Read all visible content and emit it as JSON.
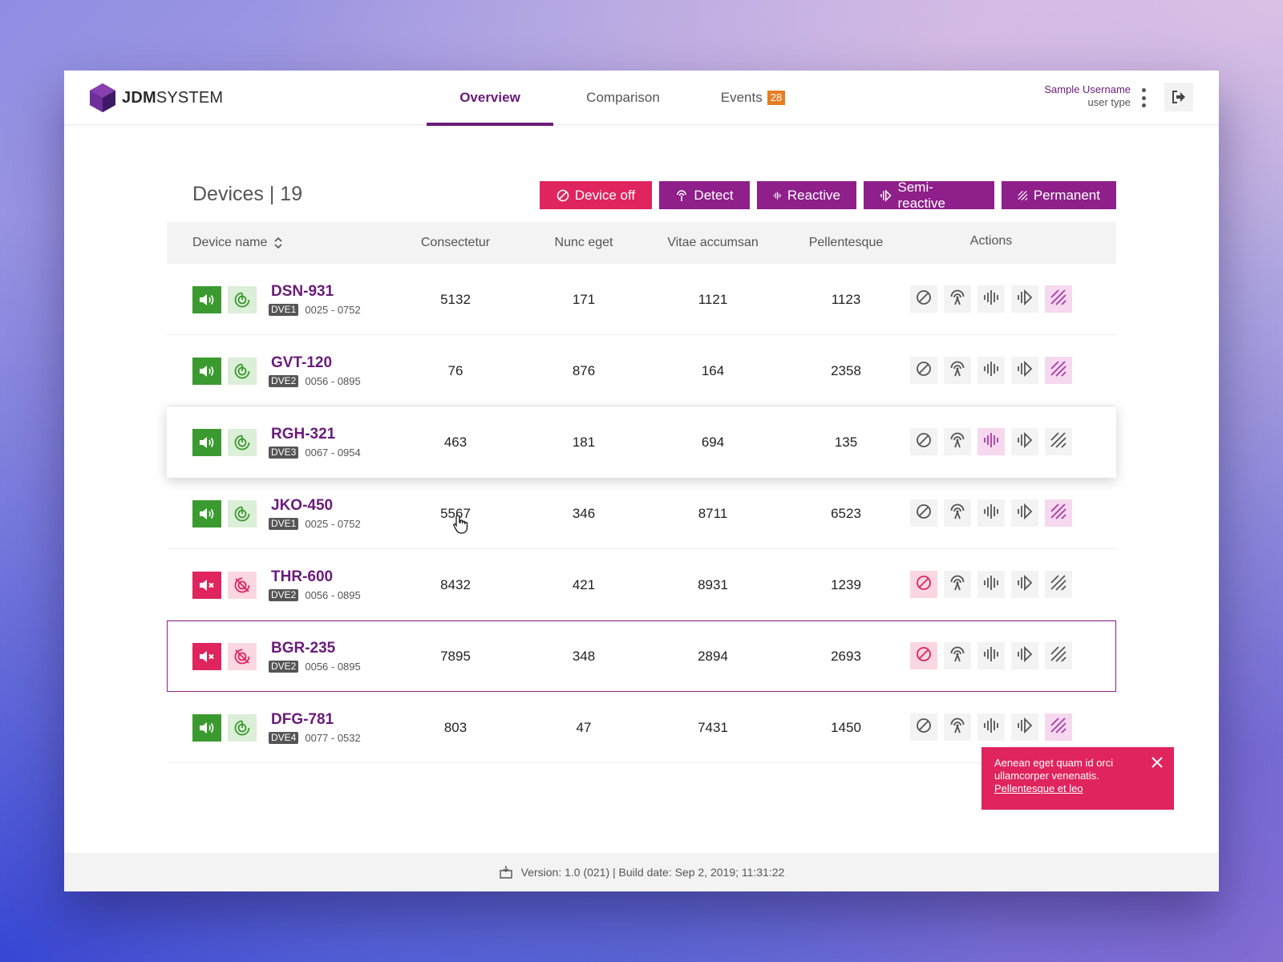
{
  "app": {
    "logo_bold": "JDM",
    "logo_light": "SYSTEM"
  },
  "nav": {
    "tabs": [
      {
        "label": "Overview",
        "active": true
      },
      {
        "label": "Comparison",
        "active": false
      },
      {
        "label": "Events",
        "active": false,
        "badge": "28"
      }
    ]
  },
  "user": {
    "name": "Sample Username",
    "type": "user type"
  },
  "devices": {
    "title": "Devices | 19",
    "mode_buttons": [
      {
        "label": "Device off",
        "icon": "ban-icon"
      },
      {
        "label": "Detect",
        "icon": "antenna-icon"
      },
      {
        "label": "Reactive",
        "icon": "waveform-icon"
      },
      {
        "label": "Semi-reactive",
        "icon": "half-wave-icon"
      },
      {
        "label": "Permanent",
        "icon": "hatch-icon"
      }
    ],
    "columns": [
      "Device name",
      "Consectetur",
      "Nunc eget",
      "Vitae accumsan",
      "Pellentesque",
      "Actions"
    ],
    "rows": [
      {
        "name": "DSN-931",
        "type": "DVE1",
        "range": "0025 - 0752",
        "v1": "5132",
        "v2": "171",
        "v3": "1121",
        "v4": "1123",
        "status": "on",
        "active_action": "permanent"
      },
      {
        "name": "GVT-120",
        "type": "DVE2",
        "range": "0056 - 0895",
        "v1": "76",
        "v2": "876",
        "v3": "164",
        "v4": "2358",
        "status": "on",
        "active_action": "permanent"
      },
      {
        "name": "RGH-321",
        "type": "DVE3",
        "range": "0067 - 0954",
        "v1": "463",
        "v2": "181",
        "v3": "694",
        "v4": "135",
        "status": "on",
        "active_action": "reactive"
      },
      {
        "name": "JKO-450",
        "type": "DVE1",
        "range": "0025 - 0752",
        "v1": "5567",
        "v2": "346",
        "v3": "8711",
        "v4": "6523",
        "status": "on",
        "active_action": "permanent"
      },
      {
        "name": "THR-600",
        "type": "DVE2",
        "range": "0056 - 0895",
        "v1": "8432",
        "v2": "421",
        "v3": "8931",
        "v4": "1239",
        "status": "off",
        "active_action": "off"
      },
      {
        "name": "BGR-235",
        "type": "DVE2",
        "range": "0056 - 0895",
        "v1": "7895",
        "v2": "348",
        "v3": "2894",
        "v4": "2693",
        "status": "off",
        "active_action": "off"
      },
      {
        "name": "DFG-781",
        "type": "DVE4",
        "range": "0077 - 0532",
        "v1": "803",
        "v2": "47",
        "v3": "7431",
        "v4": "1450",
        "status": "on",
        "active_action": "permanent"
      }
    ]
  },
  "toast": {
    "message": "Aenean eget quam id orci ullamcorper venenatis.",
    "link": "Pellentesque et leo"
  },
  "footer": {
    "text": "Version: 1.0 (021) | Build date: Sep  2, 2019; 11:31:22"
  },
  "colors": {
    "brand_purple": "#6a1b7a",
    "mode_purple": "#8e1f8b",
    "alert_red": "#e0245e",
    "status_green": "#3b9a2f",
    "badge_orange": "#e67e22"
  }
}
